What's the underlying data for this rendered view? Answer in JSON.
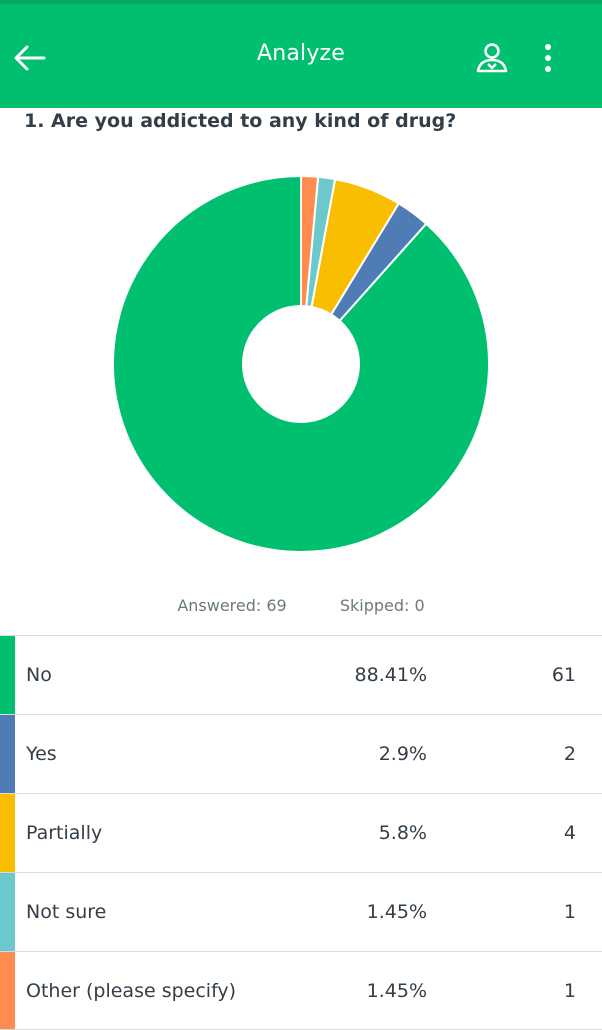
{
  "header": {
    "title": "Analyze",
    "back_icon": "arrow-left-icon",
    "share_icon": "user-share-icon",
    "more_icon": "more-vertical-icon",
    "bar_color": "#00bf6f"
  },
  "question": {
    "title": "1. Are you addicted to any kind of drug?"
  },
  "summary": {
    "answered": "Answered: 69",
    "skipped": "Skipped: 0"
  },
  "chart_data": {
    "type": "pie",
    "style": "donut",
    "categories": [
      "No",
      "Yes",
      "Partially",
      "Not sure",
      "Other (please specify)"
    ],
    "values": [
      88.41,
      2.9,
      5.8,
      1.45,
      1.45
    ],
    "counts": [
      61,
      2,
      4,
      1,
      1
    ],
    "colors": [
      "#00bf6f",
      "#507cb6",
      "#f9be00",
      "#6bc8cd",
      "#ff8b4f"
    ],
    "start_angle": "12 o'clock",
    "direction": "counterclockwise",
    "legend": "table below chart"
  },
  "table": {
    "rows": [
      {
        "label": "No",
        "percent": "88.41%",
        "count": "61"
      },
      {
        "label": "Yes",
        "percent": "2.9%",
        "count": "2"
      },
      {
        "label": "Partially",
        "percent": "5.8%",
        "count": "4"
      },
      {
        "label": "Not sure",
        "percent": "1.45%",
        "count": "1"
      },
      {
        "label": "Other (please specify)",
        "percent": "1.45%",
        "count": "1"
      }
    ]
  }
}
